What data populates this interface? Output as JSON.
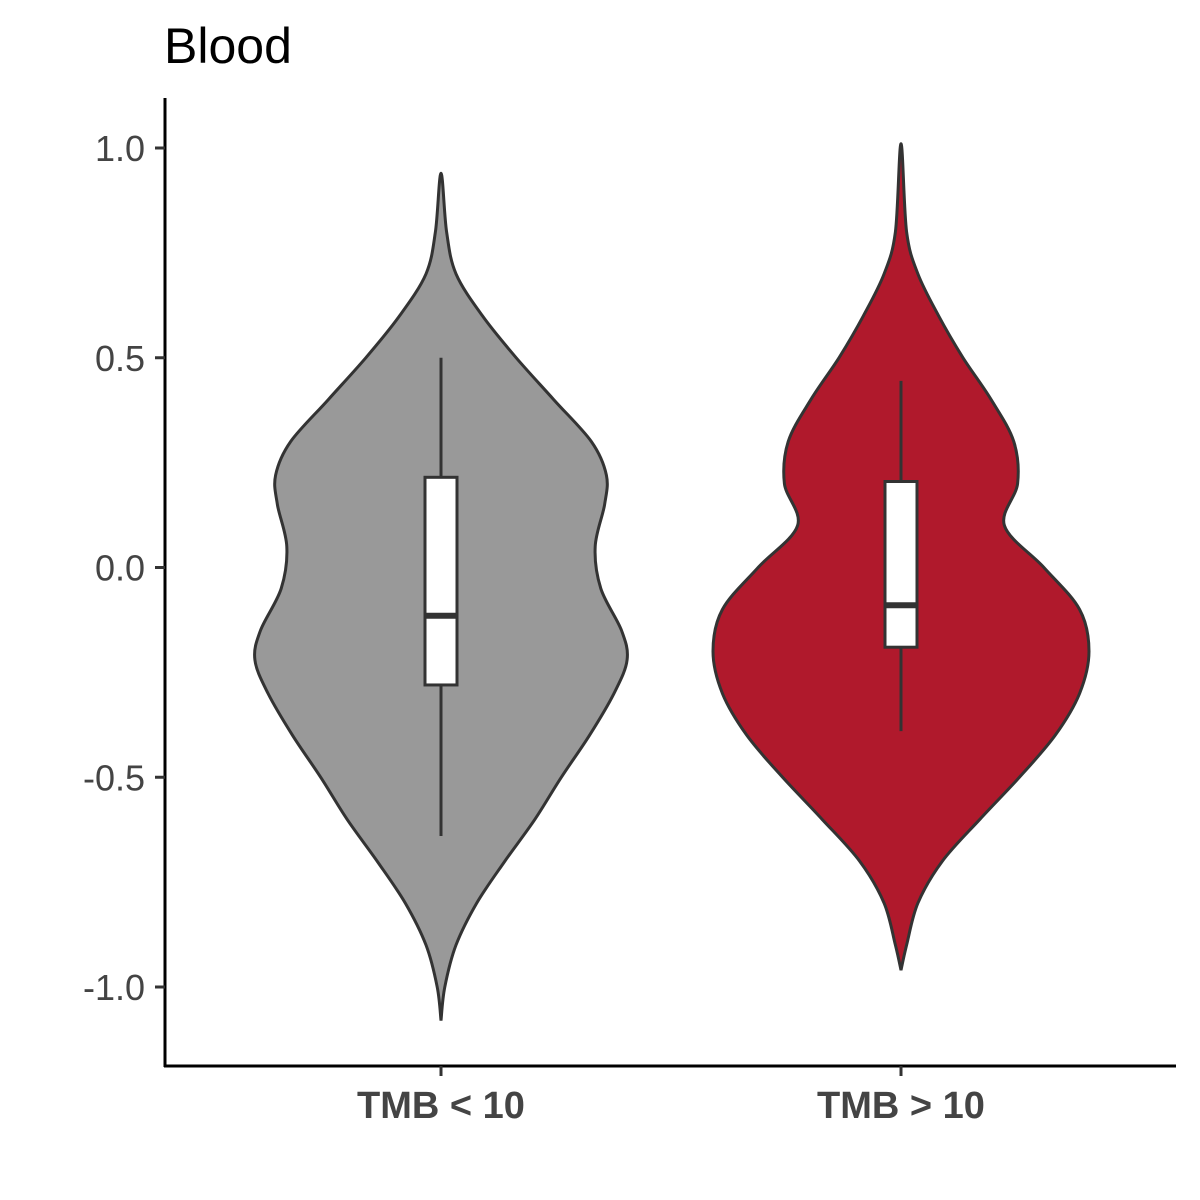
{
  "chart_data": {
    "type": "violin",
    "title": "Blood",
    "xlabel": "",
    "ylabel": "",
    "ylim": [
      -1.15,
      1.12
    ],
    "y_ticks": [
      {
        "value": 1.0,
        "label": "1.0"
      },
      {
        "value": 0.5,
        "label": "0.5"
      },
      {
        "value": 0.0,
        "label": "0.0"
      },
      {
        "value": -0.5,
        "label": "-0.5"
      },
      {
        "value": -1.0,
        "label": "-1.0"
      }
    ],
    "grid": false,
    "legend": "none",
    "groups": [
      {
        "label": "TMB < 10",
        "color": "#999999",
        "box": {
          "min": -0.64,
          "q1": -0.28,
          "median": -0.115,
          "q3": 0.215,
          "max": 0.5
        },
        "density": [
          [
            -1.08,
            0.0
          ],
          [
            -1.0,
            0.02
          ],
          [
            -0.9,
            0.08
          ],
          [
            -0.8,
            0.19
          ],
          [
            -0.7,
            0.34
          ],
          [
            -0.6,
            0.5
          ],
          [
            -0.5,
            0.64
          ],
          [
            -0.4,
            0.79
          ],
          [
            -0.3,
            0.92
          ],
          [
            -0.22,
            0.99
          ],
          [
            -0.15,
            0.96
          ],
          [
            -0.05,
            0.85
          ],
          [
            0.05,
            0.82
          ],
          [
            0.15,
            0.87
          ],
          [
            0.22,
            0.88
          ],
          [
            0.3,
            0.8
          ],
          [
            0.4,
            0.6
          ],
          [
            0.5,
            0.4
          ],
          [
            0.6,
            0.22
          ],
          [
            0.7,
            0.08
          ],
          [
            0.8,
            0.03
          ],
          [
            0.94,
            0.0
          ]
        ]
      },
      {
        "label": "TMB > 10",
        "color": "#B0192C",
        "box": {
          "min": -0.39,
          "q1": -0.19,
          "median": -0.09,
          "q3": 0.205,
          "max": 0.445
        },
        "density": [
          [
            -0.96,
            0.0
          ],
          [
            -0.9,
            0.03
          ],
          [
            -0.8,
            0.09
          ],
          [
            -0.7,
            0.22
          ],
          [
            -0.6,
            0.42
          ],
          [
            -0.5,
            0.63
          ],
          [
            -0.4,
            0.82
          ],
          [
            -0.3,
            0.95
          ],
          [
            -0.2,
            1.0
          ],
          [
            -0.1,
            0.95
          ],
          [
            0.0,
            0.76
          ],
          [
            0.1,
            0.55
          ],
          [
            0.2,
            0.62
          ],
          [
            0.3,
            0.6
          ],
          [
            0.4,
            0.48
          ],
          [
            0.5,
            0.33
          ],
          [
            0.6,
            0.2
          ],
          [
            0.7,
            0.09
          ],
          [
            0.8,
            0.03
          ],
          [
            1.01,
            0.0
          ]
        ]
      }
    ]
  }
}
